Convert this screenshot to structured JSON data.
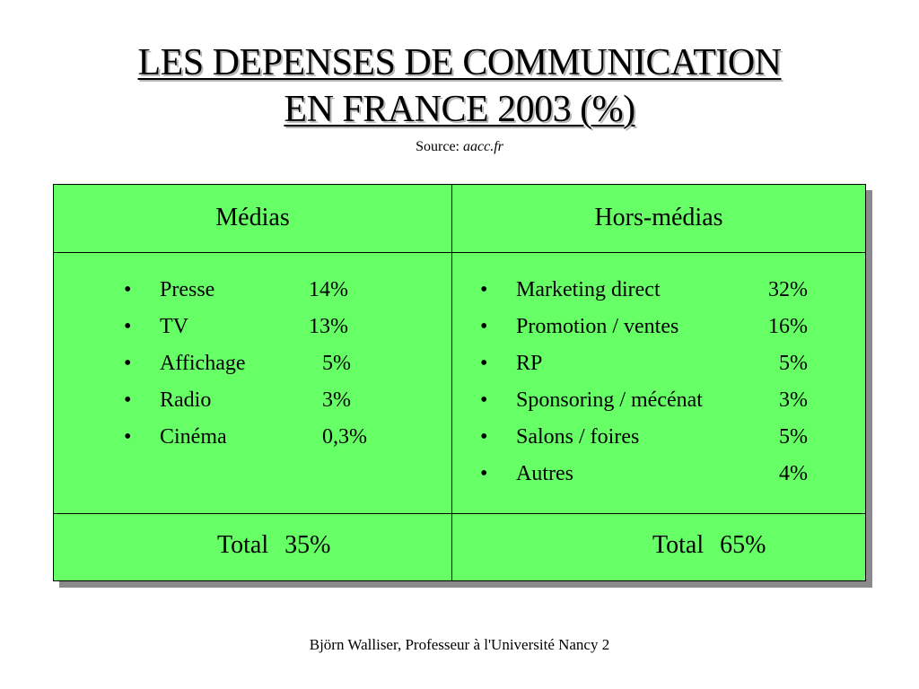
{
  "title": {
    "line1": "LES DEPENSES DE COMMUNICATION",
    "line2": "EN FRANCE 2003 (%)"
  },
  "source": {
    "label": "Source:",
    "value": "aacc.fr"
  },
  "bullet_symbol": "•",
  "table": {
    "left": {
      "header": "Médias",
      "items": [
        {
          "label": "Presse",
          "value": "14%"
        },
        {
          "label": "TV",
          "value": "13%"
        },
        {
          "label": "Affichage",
          "value": "5%"
        },
        {
          "label": "Radio",
          "value": "3%"
        },
        {
          "label": "Cinéma",
          "value": "0,3%"
        }
      ],
      "total_label": "Total",
      "total_value": "35%"
    },
    "right": {
      "header": "Hors-médias",
      "items": [
        {
          "label": "Marketing direct",
          "value": "32%"
        },
        {
          "label": "Promotion / ventes",
          "value": "16%"
        },
        {
          "label": "RP",
          "value": "5%"
        },
        {
          "label": "Sponsoring / mécénat",
          "value": "3%"
        },
        {
          "label": "Salons / foires",
          "value": "5%"
        },
        {
          "label": "Autres",
          "value": "4%"
        }
      ],
      "total_label": "Total",
      "total_value": "65%"
    }
  },
  "footer": "Björn Walliser, Professeur à l'Université Nancy 2",
  "colors": {
    "table_background": "#66ff66",
    "shadow": "#8a8a8a"
  }
}
